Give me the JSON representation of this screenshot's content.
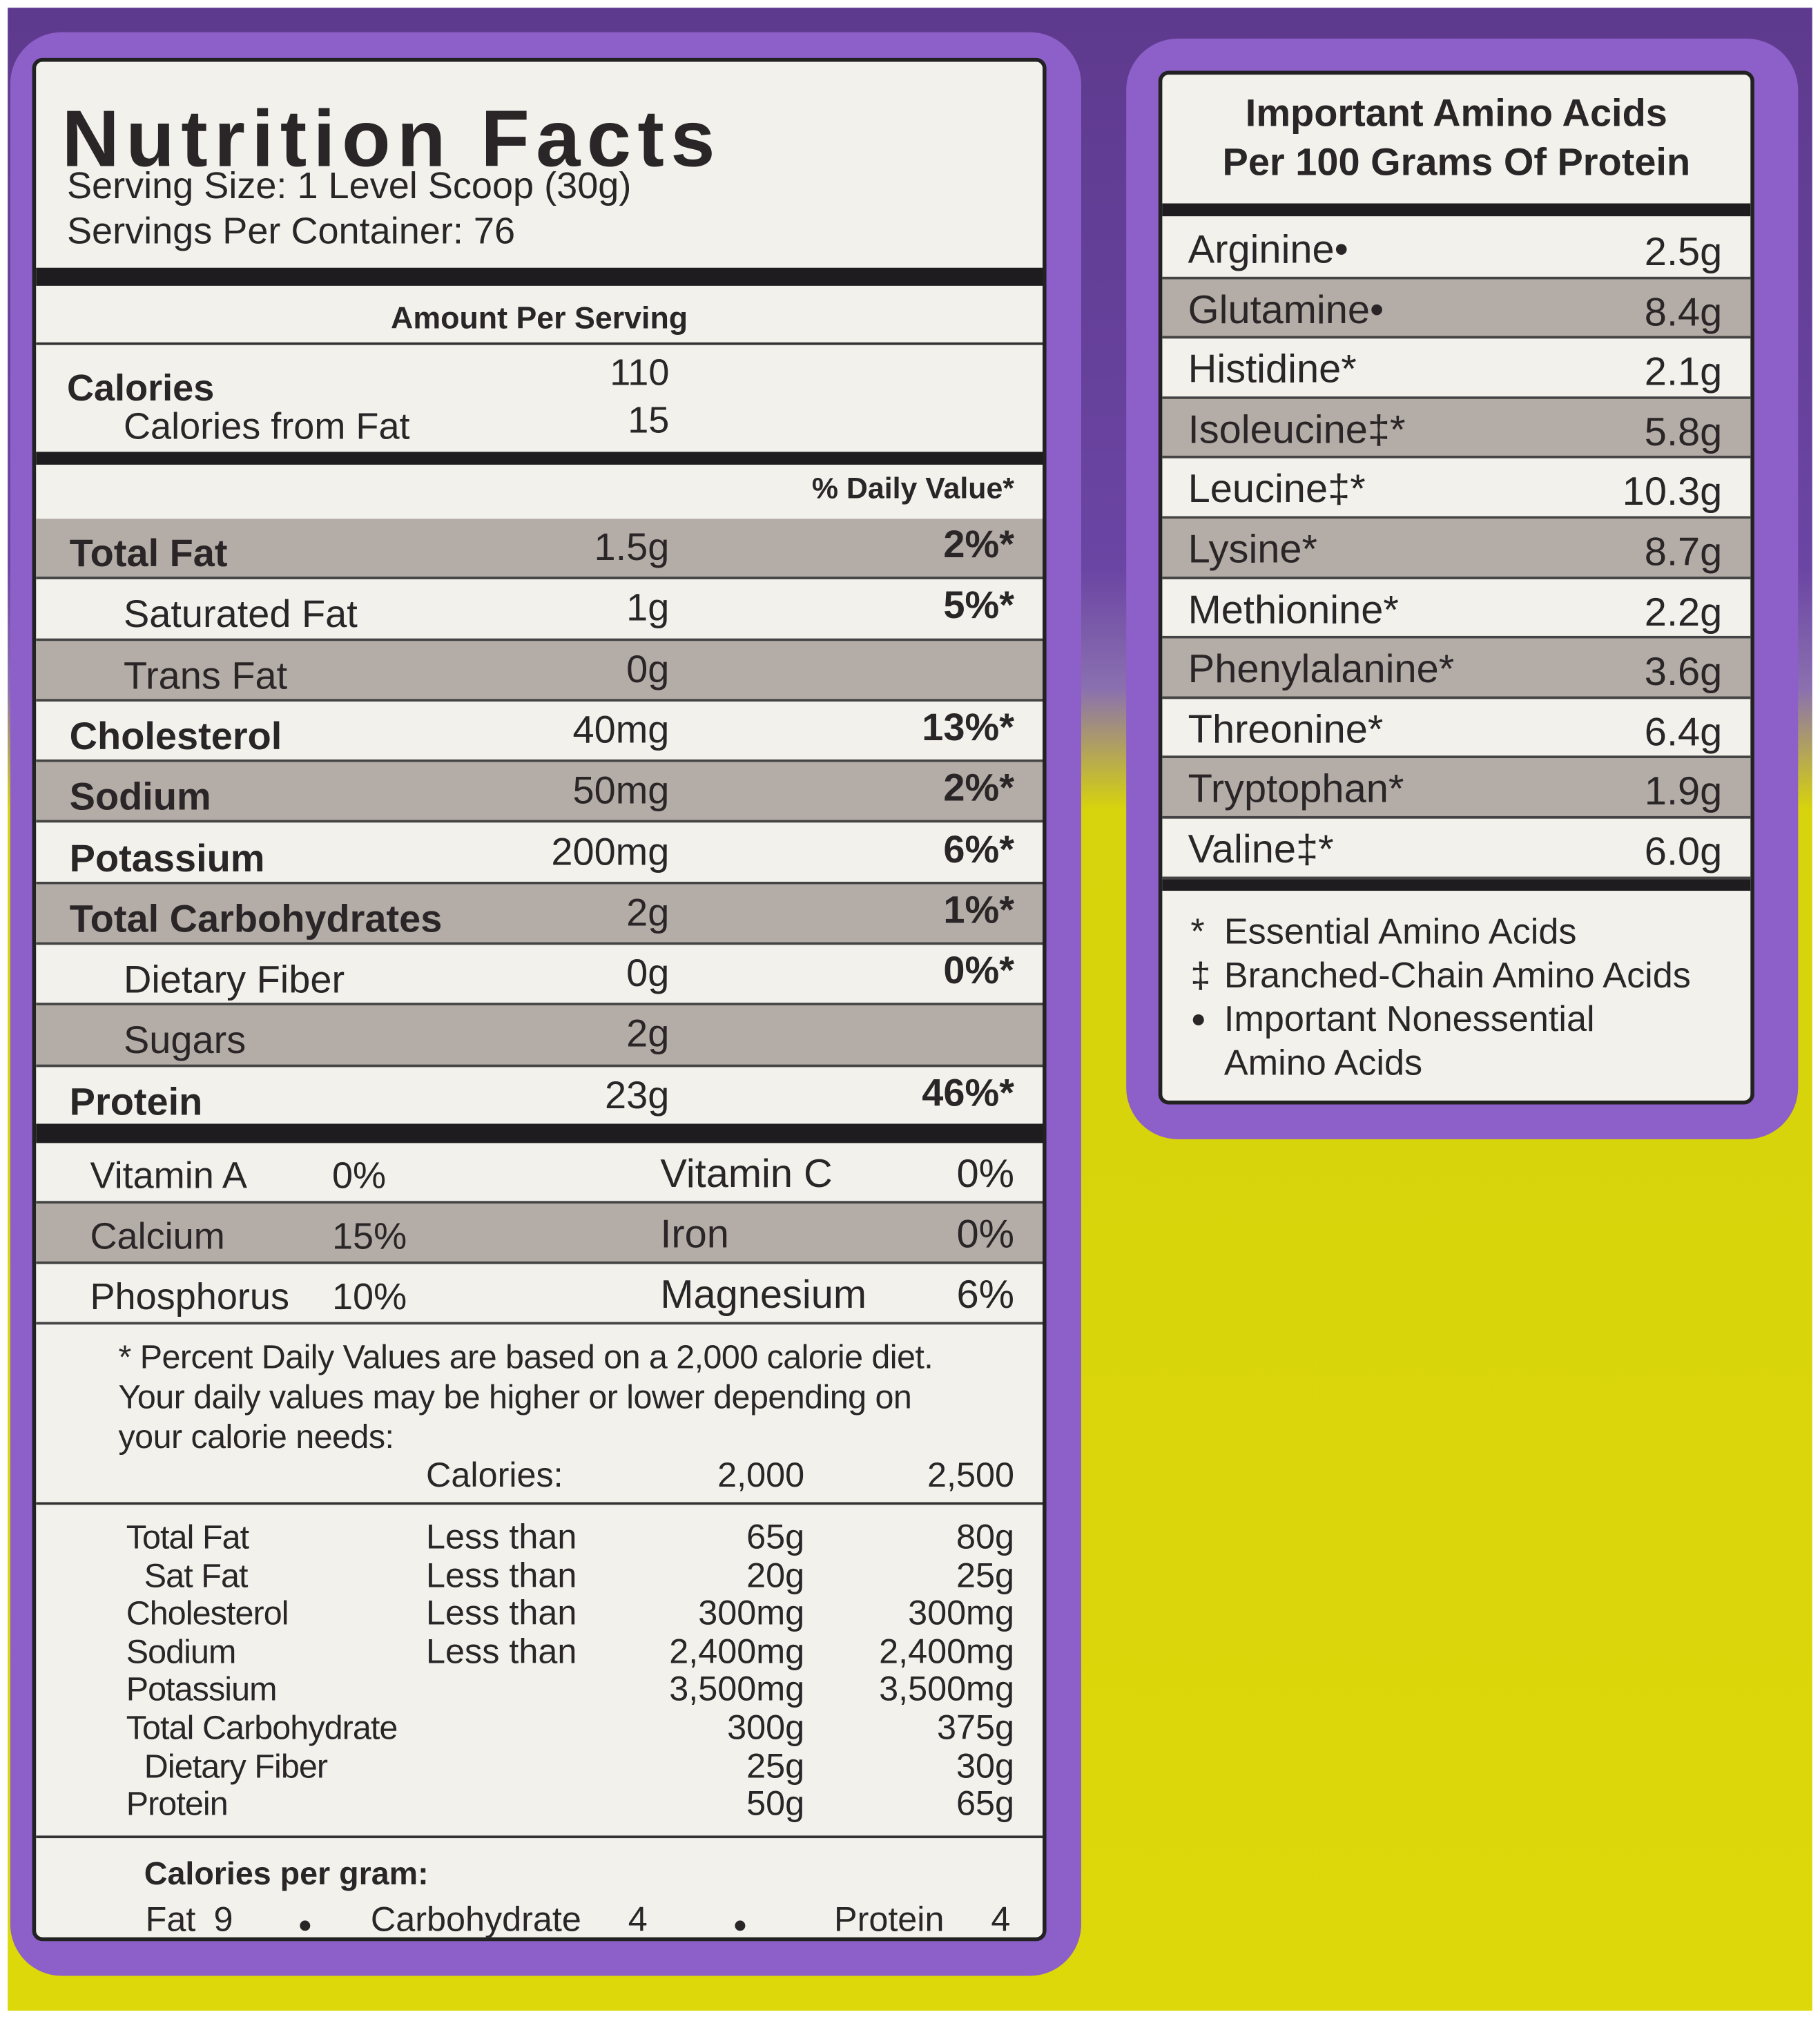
{
  "nutrition_facts": {
    "title": "Nutrition Facts",
    "serving_size": "Serving Size: 1 Level Scoop (30g)",
    "servings_per_container": "Servings Per Container: 76",
    "amount_per_serving": "Amount Per Serving",
    "calories": {
      "label": "Calories",
      "value": "110"
    },
    "calories_from_fat": {
      "label": "Calories from Fat",
      "value": "15"
    },
    "daily_value_header": "% Daily Value*",
    "nutrients": [
      {
        "name": "Total Fat",
        "amount": "1.5g",
        "dv": "2%*",
        "bold": true,
        "indent": false
      },
      {
        "name": "Saturated Fat",
        "amount": "1g",
        "dv": "5%*",
        "bold": false,
        "indent": true
      },
      {
        "name": "Trans Fat",
        "amount": "0g",
        "dv": null,
        "bold": false,
        "indent": true
      },
      {
        "name": "Cholesterol",
        "amount": "40mg",
        "dv": "13%*",
        "bold": true,
        "indent": false
      },
      {
        "name": "Sodium",
        "amount": "50mg",
        "dv": "2%*",
        "bold": true,
        "indent": false
      },
      {
        "name": "Potassium",
        "amount": "200mg",
        "dv": "6%*",
        "bold": true,
        "indent": false
      },
      {
        "name": "Total Carbohydrates",
        "amount": "2g",
        "dv": "1%*",
        "bold": true,
        "indent": false
      },
      {
        "name": "Dietary Fiber",
        "amount": "0g",
        "dv": "0%*",
        "bold": false,
        "indent": true
      },
      {
        "name": "Sugars",
        "amount": "2g",
        "dv": null,
        "bold": false,
        "indent": true
      },
      {
        "name": "Protein",
        "amount": "23g",
        "dv": "46%*",
        "bold": true,
        "indent": false
      }
    ],
    "vitamins": [
      [
        "Vitamin A",
        "0%",
        "Vitamin C",
        "0%"
      ],
      [
        "Calcium",
        "15%",
        "Iron",
        "0%"
      ],
      [
        "Phosphorus",
        "10%",
        "Magnesium",
        "6%"
      ]
    ],
    "footnote": [
      "* Percent Daily Values are based on a 2,000 calorie diet.",
      "Your daily values may be higher or lower depending on",
      "your calorie needs:"
    ],
    "reference": {
      "header": [
        "Calories:",
        "2,000",
        "2,500"
      ],
      "rows": [
        {
          "name": "Total Fat",
          "qualifier": "Less than",
          "values": [
            "65g",
            "80g"
          ],
          "indent": false
        },
        {
          "name": "Sat Fat",
          "qualifier": "Less than",
          "values": [
            "20g",
            "25g"
          ],
          "indent": true
        },
        {
          "name": "Cholesterol",
          "qualifier": "Less than",
          "values": [
            "300mg",
            "300mg"
          ],
          "indent": false
        },
        {
          "name": "Sodium",
          "qualifier": "Less than",
          "values": [
            "2,400mg",
            "2,400mg"
          ],
          "indent": false
        },
        {
          "name": "Potassium",
          "qualifier": null,
          "values": [
            "3,500mg",
            "3,500mg"
          ],
          "indent": false
        },
        {
          "name": "Total Carbohydrate",
          "qualifier": null,
          "values": [
            "300g",
            "375g"
          ],
          "indent": false
        },
        {
          "name": "Dietary Fiber",
          "qualifier": null,
          "values": [
            "25g",
            "30g"
          ],
          "indent": true
        },
        {
          "name": "Protein",
          "qualifier": null,
          "values": [
            "50g",
            "65g"
          ],
          "indent": false
        }
      ]
    },
    "calories_per_gram": {
      "label": "Calories per gram:",
      "items": [
        [
          "Fat",
          "9"
        ],
        [
          "Carbohydrate",
          "4"
        ],
        [
          "Protein",
          "4"
        ]
      ]
    }
  },
  "amino_acids": {
    "title": [
      "Important Amino Acids",
      "Per 100 Grams Of Protein"
    ],
    "rows": [
      [
        "Arginine•",
        "2.5g"
      ],
      [
        "Glutamine•",
        "8.4g"
      ],
      [
        "Histidine*",
        "2.1g"
      ],
      [
        "Isoleucine‡*",
        "5.8g"
      ],
      [
        "Leucine‡*",
        "10.3g"
      ],
      [
        "Lysine*",
        "8.7g"
      ],
      [
        "Methionine*",
        "2.2g"
      ],
      [
        "Phenylalanine*",
        "3.6g"
      ],
      [
        "Threonine*",
        "6.4g"
      ],
      [
        "Tryptophan*",
        "1.9g"
      ],
      [
        "Valine‡*",
        "6.0g"
      ]
    ],
    "legend": [
      {
        "symbol": "*",
        "lines": [
          "Essential Amino Acids"
        ]
      },
      {
        "symbol": "‡",
        "lines": [
          "Branched-Chain Amino Acids"
        ]
      },
      {
        "symbol": "●",
        "lines": [
          "Important Nonessential",
          "Amino Acids"
        ]
      }
    ]
  }
}
